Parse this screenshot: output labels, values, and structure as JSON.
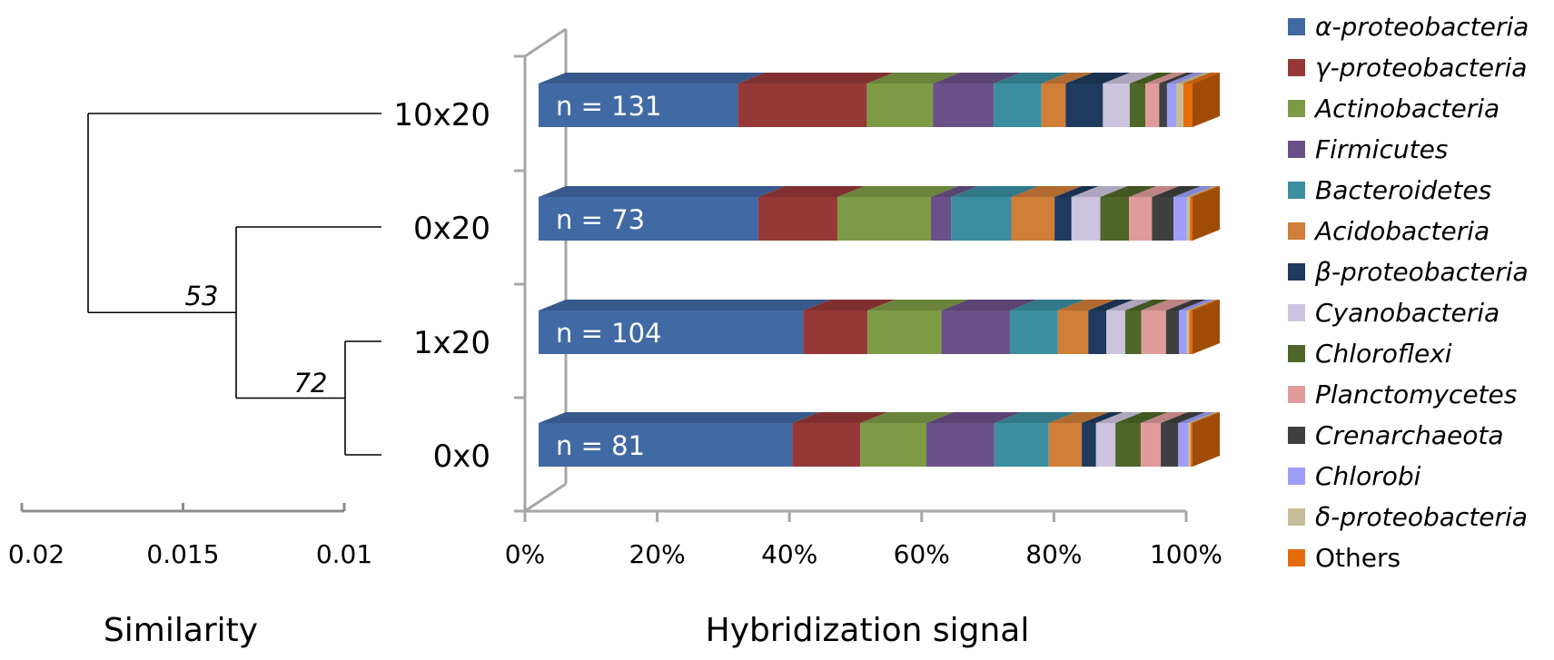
{
  "dendrogram": {
    "axis_label": "Similarity",
    "ticks": [
      "0.02",
      "0.015",
      "0.01"
    ],
    "leaves": [
      "10x20",
      "0x20",
      "1x20",
      "0x0"
    ],
    "node_labels": [
      "53",
      "72"
    ]
  },
  "chart_data": {
    "type": "bar",
    "orientation": "horizontal",
    "stacked": "percent",
    "xlabel": "Hybridization signal",
    "ylabel": "",
    "xlim": [
      0,
      100
    ],
    "x_ticks": [
      "0%",
      "20%",
      "40%",
      "60%",
      "80%",
      "100%"
    ],
    "grid": false,
    "legend_position": "right",
    "categories": [
      "10x20",
      "0x20",
      "1x20",
      "0x0"
    ],
    "annotations": [
      "n = 131",
      "n = 73",
      "n = 104",
      "n = 81"
    ],
    "series": [
      {
        "name": "α-proteobacteria",
        "italic": true,
        "color": "#4169A3",
        "values": [
          30.5,
          33.6,
          40.9,
          39.2
        ]
      },
      {
        "name": "γ-proteobacteria",
        "italic": true,
        "color": "#963838",
        "values": [
          19.7,
          12.1,
          9.9,
          10.5
        ]
      },
      {
        "name": "Actinobacteria",
        "italic": true,
        "color": "#7D9B45",
        "values": [
          10.1,
          14.3,
          11.4,
          10.2
        ]
      },
      {
        "name": "Firmicutes",
        "italic": true,
        "color": "#6A5089",
        "values": [
          9.3,
          3.1,
          10.6,
          10.5
        ]
      },
      {
        "name": "Bacteroidetes",
        "italic": true,
        "color": "#3A8EA0",
        "values": [
          7.3,
          9.2,
          7.4,
          8.4
        ]
      },
      {
        "name": "Acidobacteria",
        "italic": true,
        "color": "#D07E38",
        "values": [
          3.7,
          6.6,
          4.7,
          5.1
        ]
      },
      {
        "name": "β-proteobacteria",
        "italic": true,
        "color": "#1F3A5E",
        "values": [
          5.7,
          2.6,
          2.8,
          2.2
        ]
      },
      {
        "name": "Cyanobacteria",
        "italic": true,
        "color": "#CCC3DE",
        "values": [
          4.1,
          4.4,
          2.9,
          3.0
        ]
      },
      {
        "name": "Chloroflexi",
        "italic": true,
        "color": "#4E6628",
        "values": [
          2.4,
          4.4,
          2.5,
          3.9
        ]
      },
      {
        "name": "Planctomycetes",
        "italic": true,
        "color": "#E09B9B",
        "values": [
          2.1,
          3.5,
          3.8,
          3.1
        ]
      },
      {
        "name": "Crenarchaeota",
        "italic": true,
        "color": "#404040",
        "values": [
          1.2,
          3.3,
          2.0,
          2.7
        ]
      },
      {
        "name": "Chlorobi",
        "italic": true,
        "color": "#9E9EFA",
        "values": [
          1.4,
          2.0,
          1.2,
          1.5
        ]
      },
      {
        "name": "δ-proteobacteria",
        "italic": true,
        "color": "#C6BE98",
        "values": [
          1.1,
          0.5,
          0.4,
          0.4
        ]
      },
      {
        "name": "Others",
        "italic": false,
        "color": "#E46C0A",
        "values": [
          1.4,
          0.4,
          0.5,
          0.3
        ]
      }
    ]
  }
}
